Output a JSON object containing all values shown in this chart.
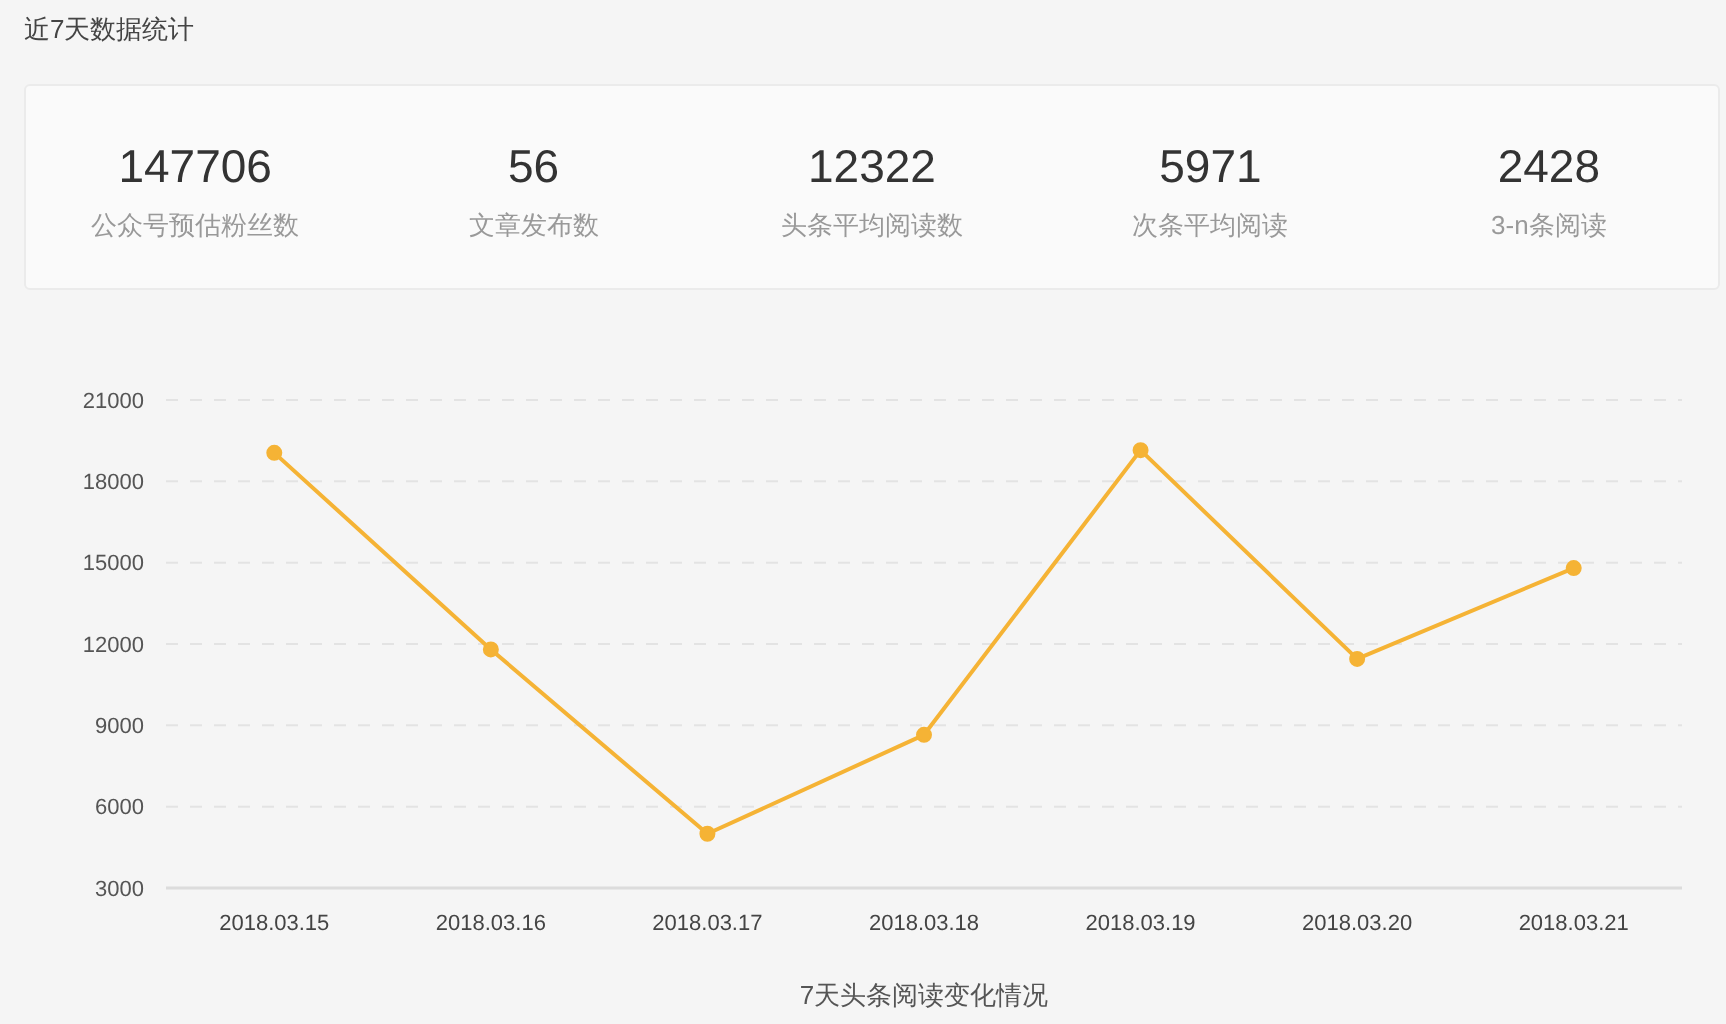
{
  "chart_data": [
    {
      "type": "other",
      "title": "近7天数据统计",
      "categories": [
        "公众号预估粉丝数",
        "文章发布数",
        "头条平均阅读数",
        "次条平均阅读",
        "3-n条阅读"
      ],
      "values": [
        147706,
        56,
        12322,
        5971,
        2428
      ],
      "data_labels": true
    },
    {
      "type": "line",
      "xlabel": "7天头条阅读变化情况",
      "categories": [
        "2018.03.15",
        "2018.03.16",
        "2018.03.17",
        "2018.03.18",
        "2018.03.19",
        "2018.03.20",
        "2018.03.21"
      ],
      "series": [
        {
          "color": "#f5b335",
          "values": [
            19050,
            11800,
            5000,
            8650,
            19150,
            11450,
            14800
          ]
        }
      ],
      "ylim": [
        3000,
        21000
      ],
      "yticks": [
        3000,
        6000,
        9000,
        12000,
        15000,
        18000,
        21000
      ],
      "grid": "y",
      "marker": "circle"
    }
  ]
}
